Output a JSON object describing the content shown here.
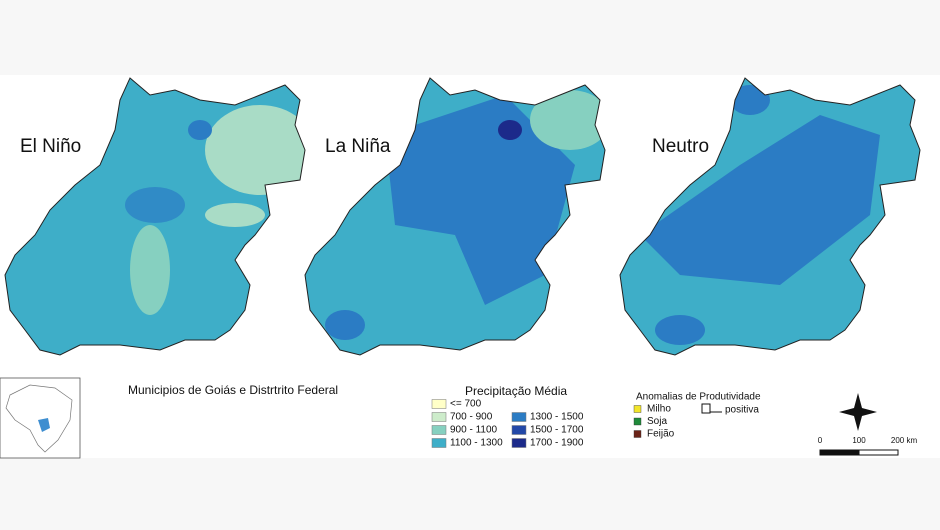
{
  "maps": [
    {
      "title": "El Niño"
    },
    {
      "title": "La Niña"
    },
    {
      "title": "Neutro"
    }
  ],
  "caption": "Municipios de Goiás e Distrtrito Federal",
  "precipitation_legend": {
    "title": "Precipitação Média",
    "classes": [
      {
        "label": "<= 700",
        "color": "#ffffc8"
      },
      {
        "label": "700 - 900",
        "color": "#cdeccb"
      },
      {
        "label": "900 - 1100",
        "color": "#86d0c0"
      },
      {
        "label": "1100 - 1300",
        "color": "#3eaec8"
      },
      {
        "label": "1300 - 1500",
        "color": "#2b7cc4"
      },
      {
        "label": "1500 - 1700",
        "color": "#2348a8"
      },
      {
        "label": "1700 - 1900",
        "color": "#1c2a8a"
      }
    ]
  },
  "productivity_legend": {
    "title": "Anomalias de Produtividade",
    "items": [
      {
        "label": "Milho",
        "color": "#f2e52a"
      },
      {
        "label": "Soja",
        "color": "#1f8a3a"
      },
      {
        "label": "Feijão",
        "color": "#6b2318"
      }
    ],
    "positive_label": "positiva"
  },
  "scale_bar": {
    "labels": [
      "0",
      "100",
      "200 km"
    ]
  }
}
